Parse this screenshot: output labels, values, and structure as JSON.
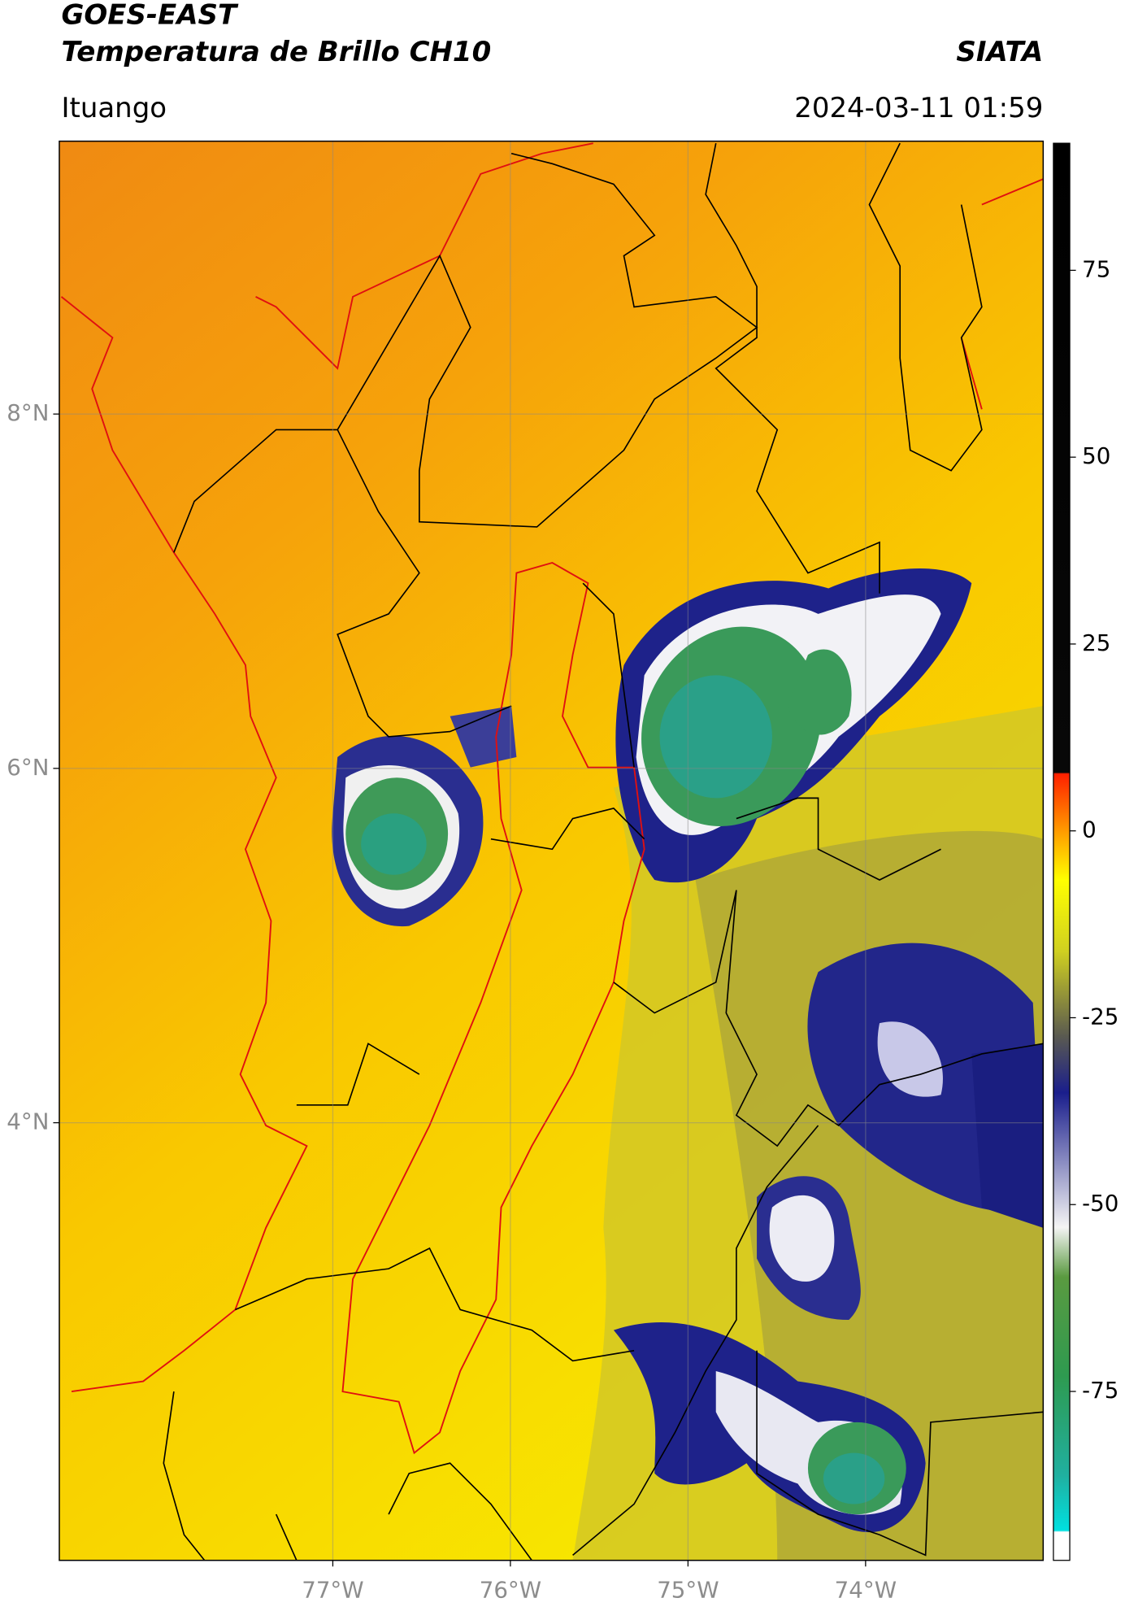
{
  "header": {
    "title_line1": "GOES-EAST",
    "title_line2": "Temperatura de Brillo CH10",
    "source": "SIATA",
    "location": "Ituango",
    "timestamp": "2024-03-11 01:59"
  },
  "map": {
    "xlim": [
      -78.54,
      -73.0
    ],
    "ylim": [
      1.53,
      9.54
    ],
    "xticks": [
      {
        "value": -77,
        "label": "77°W"
      },
      {
        "value": -76,
        "label": "76°W"
      },
      {
        "value": -75,
        "label": "75°W"
      },
      {
        "value": -74,
        "label": "74°W"
      }
    ],
    "yticks": [
      {
        "value": 8,
        "label": "8°N"
      },
      {
        "value": 6,
        "label": "6°N"
      },
      {
        "value": 4,
        "label": "4°N"
      }
    ],
    "grid": true
  },
  "colorbar": {
    "lim": [
      -97.6,
      92
    ],
    "ticks": [
      75,
      50,
      25,
      0,
      -25,
      -50,
      -75
    ]
  }
}
